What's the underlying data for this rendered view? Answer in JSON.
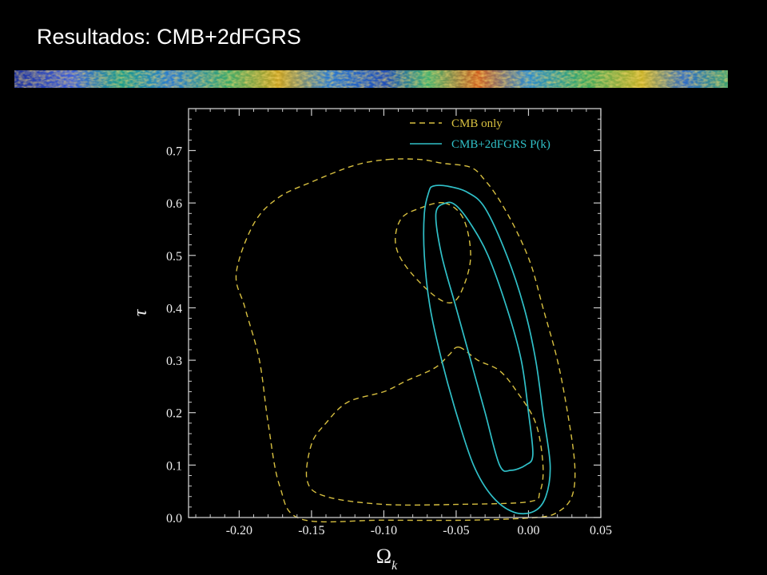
{
  "slide": {
    "title": "Resultados: CMB+2dFGRS"
  },
  "colors": {
    "background": "#000000",
    "title_text": "#ffffff",
    "axis": "#cccccc",
    "cmb_only": "#d8c040",
    "cmb_2dfgrs": "#30c0c8"
  },
  "chart_data": {
    "type": "line",
    "xlabel_symbol": "Ω",
    "xlabel_subscript": "k",
    "ylabel": "τ",
    "xlim": [
      -0.235,
      0.05
    ],
    "ylim": [
      0.0,
      0.78
    ],
    "xticks": [
      -0.2,
      -0.15,
      -0.1,
      -0.05,
      0.0,
      0.05
    ],
    "xtick_labels": [
      "-0.20",
      "-0.15",
      "-0.10",
      "-0.05",
      "0.00",
      "0.05"
    ],
    "yticks": [
      0.0,
      0.1,
      0.2,
      0.3,
      0.4,
      0.5,
      0.6,
      0.7
    ],
    "ytick_labels": [
      "0.0",
      "0.1",
      "0.2",
      "0.3",
      "0.4",
      "0.5",
      "0.6",
      "0.7"
    ],
    "legend_position": "top-right",
    "legend": [
      {
        "label": "CMB only",
        "style": "dashed",
        "color": "#d8c040"
      },
      {
        "label": "CMB+2dFGRS P(k)",
        "style": "solid",
        "color": "#30c0c8"
      }
    ],
    "series": [
      {
        "name": "CMB only",
        "style": "dashed",
        "color": "#d8c040",
        "contours": [
          [
            [
              -0.097,
              0.683
            ],
            [
              -0.075,
              0.683
            ],
            [
              -0.06,
              0.676
            ],
            [
              -0.04,
              0.668
            ],
            [
              -0.03,
              0.643
            ],
            [
              -0.02,
              0.605
            ],
            [
              -0.008,
              0.545
            ],
            [
              0.002,
              0.48
            ],
            [
              0.01,
              0.4
            ],
            [
              0.02,
              0.3
            ],
            [
              0.027,
              0.2
            ],
            [
              0.032,
              0.1
            ],
            [
              0.03,
              0.04
            ],
            [
              0.02,
              0.01
            ],
            [
              0.005,
              0.0
            ],
            [
              -0.04,
              -0.005
            ],
            [
              -0.1,
              -0.005
            ],
            [
              -0.157,
              -0.003
            ],
            [
              -0.172,
              0.06
            ],
            [
              -0.18,
              0.18
            ],
            [
              -0.186,
              0.3
            ],
            [
              -0.196,
              0.4
            ],
            [
              -0.202,
              0.466
            ],
            [
              -0.19,
              0.56
            ],
            [
              -0.173,
              0.61
            ],
            [
              -0.15,
              0.64
            ],
            [
              -0.12,
              0.672
            ],
            [
              -0.097,
              0.683
            ]
          ],
          [
            [
              -0.058,
              0.6
            ],
            [
              -0.045,
              0.57
            ],
            [
              -0.04,
              0.5
            ],
            [
              -0.045,
              0.44
            ],
            [
              -0.053,
              0.41
            ],
            [
              -0.066,
              0.425
            ],
            [
              -0.085,
              0.48
            ],
            [
              -0.092,
              0.525
            ],
            [
              -0.088,
              0.57
            ],
            [
              -0.075,
              0.59
            ],
            [
              -0.058,
              0.6
            ]
          ],
          [
            [
              -0.048,
              0.325
            ],
            [
              -0.035,
              0.3
            ],
            [
              -0.02,
              0.28
            ],
            [
              -0.008,
              0.24
            ],
            [
              0.005,
              0.18
            ],
            [
              0.01,
              0.1
            ],
            [
              0.008,
              0.05
            ],
            [
              0.0,
              0.03
            ],
            [
              -0.05,
              0.025
            ],
            [
              -0.1,
              0.025
            ],
            [
              -0.14,
              0.04
            ],
            [
              -0.153,
              0.07
            ],
            [
              -0.15,
              0.14
            ],
            [
              -0.14,
              0.18
            ],
            [
              -0.125,
              0.22
            ],
            [
              -0.1,
              0.24
            ],
            [
              -0.085,
              0.26
            ],
            [
              -0.065,
              0.285
            ],
            [
              -0.055,
              0.31
            ],
            [
              -0.048,
              0.325
            ]
          ]
        ]
      },
      {
        "name": "CMB+2dFGRS P(k)",
        "style": "solid",
        "color": "#30c0c8",
        "contours": [
          [
            [
              -0.066,
              0.632
            ],
            [
              -0.056,
              0.632
            ],
            [
              -0.042,
              0.62
            ],
            [
              -0.03,
              0.59
            ],
            [
              -0.015,
              0.5
            ],
            [
              -0.003,
              0.4
            ],
            [
              0.005,
              0.3
            ],
            [
              0.01,
              0.2
            ],
            [
              0.015,
              0.1
            ],
            [
              0.012,
              0.04
            ],
            [
              0.004,
              0.012
            ],
            [
              -0.01,
              0.01
            ],
            [
              -0.025,
              0.04
            ],
            [
              -0.038,
              0.1
            ],
            [
              -0.05,
              0.2
            ],
            [
              -0.06,
              0.3
            ],
            [
              -0.068,
              0.4
            ],
            [
              -0.072,
              0.5
            ],
            [
              -0.072,
              0.58
            ],
            [
              -0.069,
              0.62
            ],
            [
              -0.066,
              0.632
            ]
          ],
          [
            [
              -0.057,
              0.6
            ],
            [
              -0.05,
              0.595
            ],
            [
              -0.04,
              0.56
            ],
            [
              -0.028,
              0.5
            ],
            [
              -0.015,
              0.4
            ],
            [
              -0.005,
              0.3
            ],
            [
              0.0,
              0.2
            ],
            [
              0.003,
              0.12
            ],
            [
              -0.002,
              0.1
            ],
            [
              -0.012,
              0.09
            ],
            [
              -0.02,
              0.1
            ],
            [
              -0.03,
              0.2
            ],
            [
              -0.04,
              0.3
            ],
            [
              -0.05,
              0.4
            ],
            [
              -0.06,
              0.5
            ],
            [
              -0.064,
              0.58
            ],
            [
              -0.057,
              0.6
            ]
          ]
        ]
      }
    ]
  }
}
